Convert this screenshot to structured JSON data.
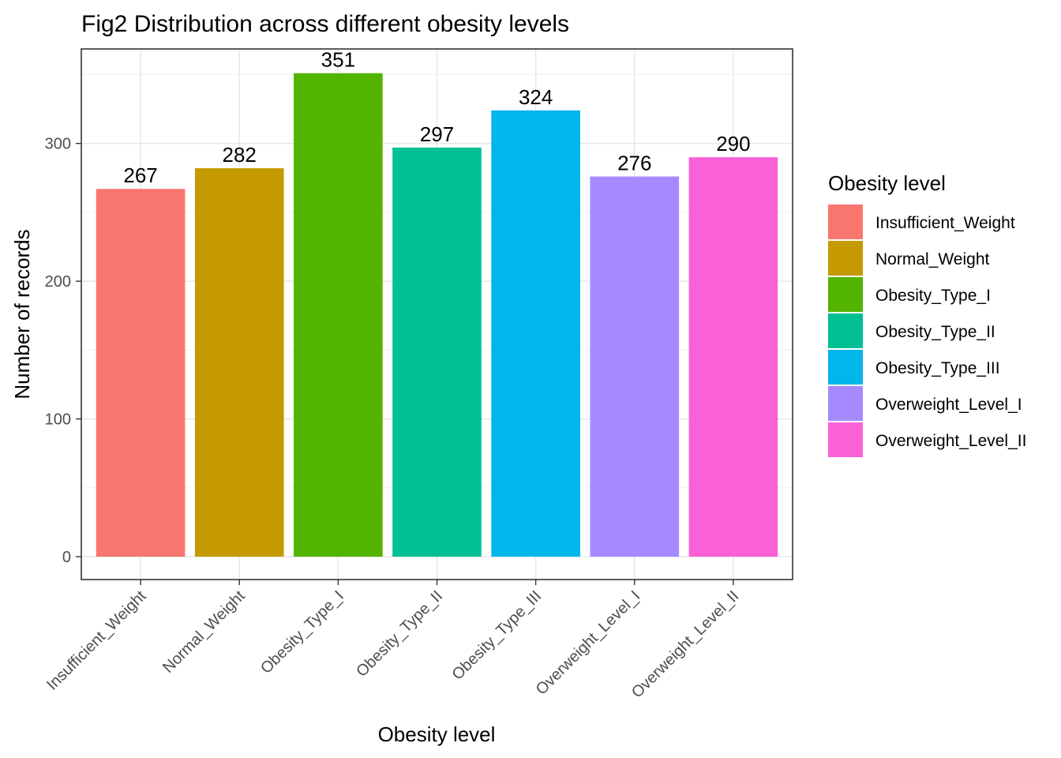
{
  "chart_data": {
    "type": "bar",
    "title": "Fig2 Distribution across different obesity levels",
    "xlabel": "Obesity level",
    "ylabel": "Number of records",
    "categories": [
      "Insufficient_Weight",
      "Normal_Weight",
      "Obesity_Type_I",
      "Obesity_Type_II",
      "Obesity_Type_III",
      "Overweight_Level_I",
      "Overweight_Level_II"
    ],
    "values": [
      267,
      282,
      351,
      297,
      324,
      276,
      290
    ],
    "colors": [
      "#F8766D",
      "#C49A00",
      "#53B400",
      "#00C094",
      "#00B6EB",
      "#A58AFF",
      "#FB61D7"
    ],
    "ylim": [
      -16.6,
      368.6
    ],
    "yticks": [
      0,
      100,
      200,
      300
    ],
    "grid": true,
    "legend": {
      "title": "Obesity level",
      "position": "right",
      "entries": [
        "Insufficient_Weight",
        "Normal_Weight",
        "Obesity_Type_I",
        "Obesity_Type_II",
        "Obesity_Type_III",
        "Overweight_Level_I",
        "Overweight_Level_II"
      ]
    }
  }
}
